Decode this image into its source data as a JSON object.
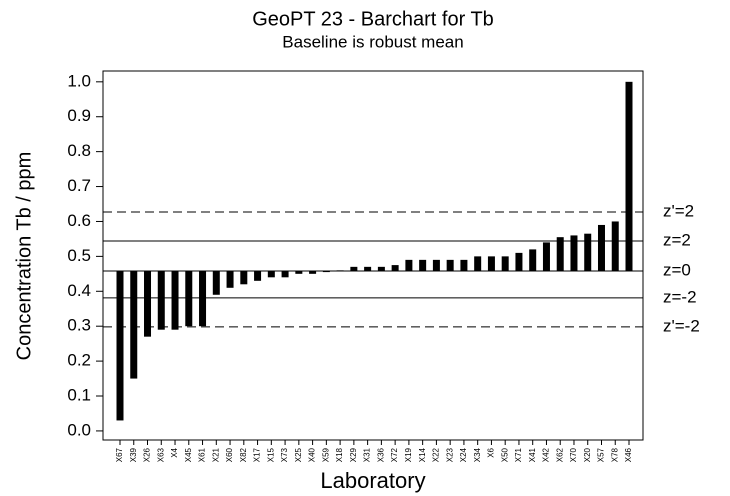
{
  "chart_data": {
    "type": "bar",
    "title": "GeoPT 23 - Barchart for Tb",
    "subtitle": "Baseline is robust mean",
    "x_label": "Laboratory",
    "y_label": "Concentration Tb / ppm",
    "categories": [
      "X67",
      "X39",
      "X26",
      "X63",
      "X4",
      "X45",
      "X61",
      "X21",
      "X60",
      "X82",
      "X17",
      "X15",
      "X73",
      "X25",
      "X40",
      "X59",
      "X18",
      "X29",
      "X31",
      "X36",
      "X72",
      "X19",
      "X14",
      "X22",
      "X23",
      "X24",
      "X34",
      "X6",
      "X50",
      "X71",
      "X41",
      "X42",
      "X62",
      "X70",
      "X20",
      "X57",
      "X78",
      "X46"
    ],
    "values": [
      0.03,
      0.15,
      0.27,
      0.29,
      0.29,
      0.3,
      0.3,
      0.39,
      0.41,
      0.42,
      0.43,
      0.44,
      0.44,
      0.45,
      0.45,
      0.455,
      0.46,
      0.47,
      0.47,
      0.47,
      0.475,
      0.49,
      0.49,
      0.49,
      0.49,
      0.49,
      0.5,
      0.5,
      0.5,
      0.51,
      0.52,
      0.54,
      0.555,
      0.56,
      0.565,
      0.59,
      0.6,
      1.0
    ],
    "color": "#000000",
    "baseline": {
      "label": "z=0",
      "value": 0.458
    },
    "reference_lines": [
      {
        "label": "z'=2",
        "value": 0.627,
        "dashed": true
      },
      {
        "label": "z=2",
        "value": 0.544,
        "dashed": false
      },
      {
        "label": "z=-2",
        "value": 0.381,
        "dashed": false
      },
      {
        "label": "z'=-2",
        "value": 0.298,
        "dashed": true
      }
    ],
    "ylim": [
      -0.026,
      1.031
    ],
    "yticks": [
      {
        "value": 0,
        "label": "0.0"
      },
      0.1,
      0.2,
      0.3,
      0.4,
      0.5,
      0.6,
      0.7,
      0.8,
      0.9,
      {
        "value": 1,
        "label": "1.0"
      }
    ]
  }
}
